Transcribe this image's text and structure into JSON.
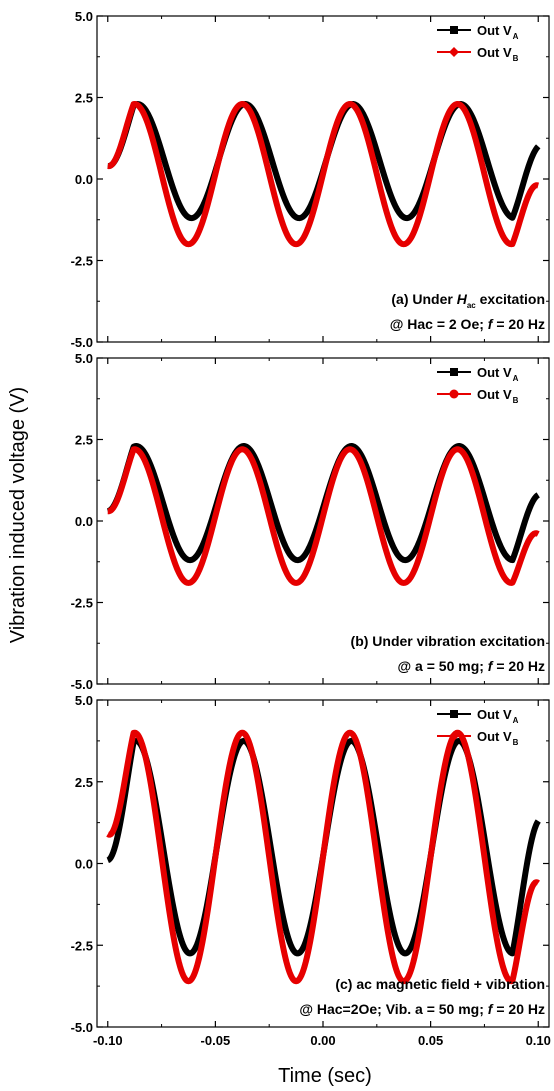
{
  "chart_data": {
    "type": "line",
    "xlabel": "Time (sec)",
    "ylabel": "Vibration induced voltage (V)",
    "xlim": [
      -0.105,
      0.105
    ],
    "ylim": [
      -5.0,
      5.0
    ],
    "x_ticks": [
      "-0.10",
      "-0.05",
      "0.00",
      "0.05",
      "0.10"
    ],
    "y_ticks": [
      "5.0",
      "2.5",
      "0.0",
      "-2.5",
      "-5.0"
    ],
    "colors": {
      "series_a": "#000000",
      "series_b": "#e60000"
    },
    "legend_position": "top-right",
    "frequency_hz": 20,
    "x_range": [
      -0.1,
      0.1
    ],
    "panels": [
      {
        "series": [
          {
            "name": "Out V",
            "subscript": "A",
            "marker": "square",
            "amplitude": 1.75,
            "offset": 0.55,
            "phase_deg": 170,
            "start_y": 0.4,
            "end_y": 1.0
          },
          {
            "name": "Out V",
            "subscript": "B",
            "marker": "diamond",
            "amplitude": 2.15,
            "offset": 0.15,
            "phase_deg": 0,
            "start_y": 0.4,
            "end_y": -0.2
          }
        ],
        "annotation": [
          [
            {
              "t": "(a) Under "
            },
            {
              "t": "H",
              "style": "italic"
            },
            {
              "t": "ac",
              "style": "sub"
            },
            {
              "t": " excitation"
            }
          ],
          [
            {
              "t": "@ Hac = 2 Oe; "
            },
            {
              "t": "f",
              "style": "italic"
            },
            {
              "t": " = 20 Hz"
            }
          ]
        ]
      },
      {
        "series": [
          {
            "name": "Out V",
            "subscript": "A",
            "marker": "square",
            "amplitude": 1.75,
            "offset": 0.55,
            "phase_deg": 175,
            "start_y": 0.3,
            "end_y": 0.8
          },
          {
            "name": "Out V",
            "subscript": "B",
            "marker": "circle",
            "amplitude": 2.05,
            "offset": 0.15,
            "phase_deg": 0,
            "start_y": 0.3,
            "end_y": -0.4
          }
        ],
        "annotation": [
          [
            {
              "t": "(b) Under vibration excitation"
            }
          ],
          [
            {
              "t": "@ a = 50 mg; "
            },
            {
              "t": "f",
              "style": "italic"
            },
            {
              "t": " = 20 Hz"
            }
          ]
        ]
      },
      {
        "series": [
          {
            "name": "Out V",
            "subscript": "A",
            "marker": "square",
            "amplitude": 3.25,
            "offset": 0.5,
            "phase_deg": 175,
            "start_y": 0.1,
            "end_y": 1.3
          },
          {
            "name": "Out V",
            "subscript": "B",
            "marker": "diamond",
            "amplitude": 3.8,
            "offset": 0.2,
            "phase_deg": 0,
            "start_y": 0.9,
            "end_y": -0.6
          }
        ],
        "annotation": [
          [
            {
              "t": "(c) ac magnetic field + vibration"
            }
          ],
          [
            {
              "t": "@ Hac=2Oe; Vib. a = 50 mg; "
            },
            {
              "t": "f",
              "style": "italic"
            },
            {
              "t": " = 20 Hz"
            }
          ]
        ]
      }
    ]
  }
}
